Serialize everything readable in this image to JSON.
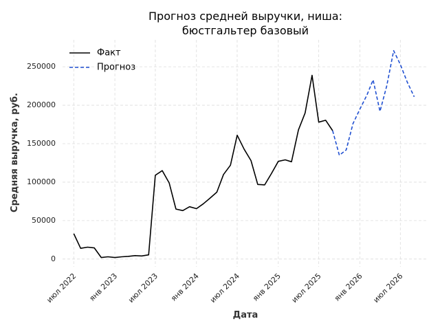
{
  "chart_data": {
    "type": "line",
    "title_lines": [
      "Прогноз средней выручки, ниша:",
      "бюстгальтер базовый"
    ],
    "xlabel": "Дата",
    "ylabel": "Средняя выручка, руб.",
    "x_domain": [
      "2022-05-12",
      "2026-10-31"
    ],
    "ylim": [
      -10000,
      285000
    ],
    "y_ticks": [
      0,
      50000,
      100000,
      150000,
      200000,
      250000
    ],
    "y_tick_labels": [
      "0",
      "50000",
      "100000",
      "150000",
      "200000",
      "250000"
    ],
    "x_ticks": [
      {
        "date": "2022-07-01",
        "label": "июл 2022"
      },
      {
        "date": "2023-01-01",
        "label": "янв 2023"
      },
      {
        "date": "2023-07-01",
        "label": "июл 2023"
      },
      {
        "date": "2024-01-01",
        "label": "янв 2024"
      },
      {
        "date": "2024-07-01",
        "label": "июл 2024"
      },
      {
        "date": "2025-01-01",
        "label": "янв 2025"
      },
      {
        "date": "2025-07-01",
        "label": "июл 2025"
      },
      {
        "date": "2026-01-01",
        "label": "янв 2026"
      },
      {
        "date": "2026-07-01",
        "label": "июл 2026"
      }
    ],
    "grid": true,
    "legend_position": "top-left",
    "series": [
      {
        "name": "Факт",
        "color": "#000000",
        "style": "solid",
        "points": [
          [
            "2022-07-01",
            33000
          ],
          [
            "2022-08-01",
            14000
          ],
          [
            "2022-09-01",
            15500
          ],
          [
            "2022-10-01",
            14500
          ],
          [
            "2022-11-01",
            2000
          ],
          [
            "2022-12-01",
            3000
          ],
          [
            "2023-01-01",
            2000
          ],
          [
            "2023-02-01",
            3000
          ],
          [
            "2023-03-01",
            3500
          ],
          [
            "2023-04-01",
            4500
          ],
          [
            "2023-05-01",
            4000
          ],
          [
            "2023-06-01",
            5500
          ],
          [
            "2023-07-01",
            109000
          ],
          [
            "2023-08-01",
            115000
          ],
          [
            "2023-09-01",
            99000
          ],
          [
            "2023-10-01",
            65000
          ],
          [
            "2023-11-01",
            63000
          ],
          [
            "2023-12-01",
            68000
          ],
          [
            "2024-01-01",
            65500
          ],
          [
            "2024-02-01",
            72000
          ],
          [
            "2024-03-01",
            79000
          ],
          [
            "2024-04-01",
            87000
          ],
          [
            "2024-05-01",
            110000
          ],
          [
            "2024-06-01",
            122000
          ],
          [
            "2024-07-01",
            161000
          ],
          [
            "2024-08-01",
            143000
          ],
          [
            "2024-09-01",
            128000
          ],
          [
            "2024-10-01",
            97000
          ],
          [
            "2024-11-01",
            96500
          ],
          [
            "2024-12-01",
            111000
          ],
          [
            "2025-01-01",
            127000
          ],
          [
            "2025-02-01",
            129000
          ],
          [
            "2025-03-01",
            126500
          ],
          [
            "2025-04-01",
            168000
          ],
          [
            "2025-05-01",
            190000
          ],
          [
            "2025-06-01",
            239000
          ],
          [
            "2025-07-01",
            178000
          ],
          [
            "2025-08-01",
            180500
          ],
          [
            "2025-09-01",
            167000
          ]
        ]
      },
      {
        "name": "Прогноз",
        "color": "#1f4fd1",
        "style": "dashed",
        "points": [
          [
            "2025-09-01",
            167000
          ],
          [
            "2025-10-01",
            135000
          ],
          [
            "2025-11-01",
            142000
          ],
          [
            "2025-12-01",
            176000
          ],
          [
            "2026-01-01",
            195000
          ],
          [
            "2026-02-01",
            213000
          ],
          [
            "2026-03-01",
            233000
          ],
          [
            "2026-04-01",
            192000
          ],
          [
            "2026-05-01",
            225000
          ],
          [
            "2026-06-01",
            271000
          ],
          [
            "2026-07-01",
            253000
          ],
          [
            "2026-08-01",
            230000
          ],
          [
            "2026-09-01",
            211000
          ]
        ]
      }
    ]
  }
}
